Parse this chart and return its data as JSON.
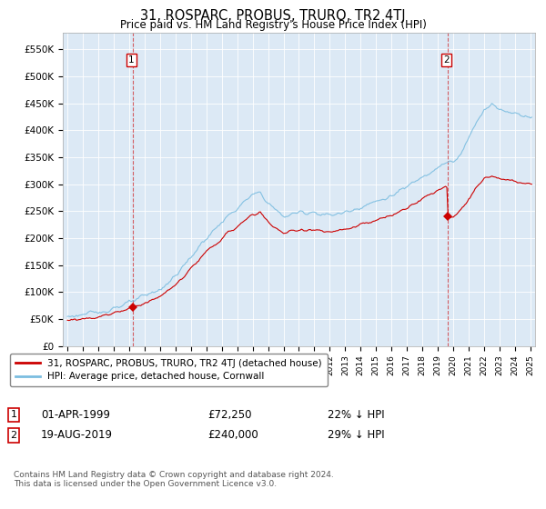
{
  "title": "31, ROSPARC, PROBUS, TRURO, TR2 4TJ",
  "subtitle": "Price paid vs. HM Land Registry's House Price Index (HPI)",
  "ylabel_ticks": [
    "£0",
    "£50K",
    "£100K",
    "£150K",
    "£200K",
    "£250K",
    "£300K",
    "£350K",
    "£400K",
    "£450K",
    "£500K",
    "£550K"
  ],
  "ytick_values": [
    0,
    50000,
    100000,
    150000,
    200000,
    250000,
    300000,
    350000,
    400000,
    450000,
    500000,
    550000
  ],
  "ylim": [
    0,
    580000
  ],
  "hpi_color": "#7bbde0",
  "price_color": "#cc0000",
  "plot_bg_color": "#dce9f5",
  "legend_label_price": "31, ROSPARC, PROBUS, TRURO, TR2 4TJ (detached house)",
  "legend_label_hpi": "HPI: Average price, detached house, Cornwall",
  "annotation1_date": "01-APR-1999",
  "annotation1_price": "£72,250",
  "annotation1_hpi": "22% ↓ HPI",
  "annotation2_date": "19-AUG-2019",
  "annotation2_price": "£240,000",
  "annotation2_hpi": "29% ↓ HPI",
  "footnote": "Contains HM Land Registry data © Crown copyright and database right 2024.\nThis data is licensed under the Open Government Licence v3.0.",
  "marker1_year": 1999.25,
  "marker1_value": 72250,
  "marker2_year": 2019.63,
  "marker2_value": 240000
}
